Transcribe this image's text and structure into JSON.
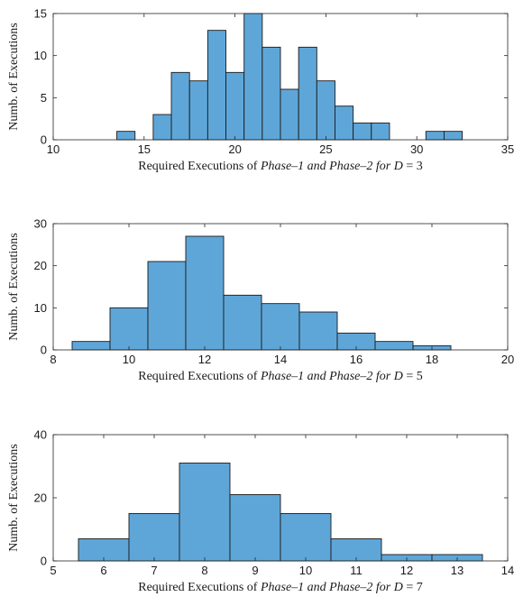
{
  "chart_data": [
    {
      "type": "bar",
      "subtype": "histogram",
      "bin_width": 1,
      "bin_centers": [
        14,
        16,
        17,
        18,
        19,
        20,
        21,
        22,
        23,
        24,
        25,
        26,
        27,
        28,
        31,
        32
      ],
      "values": [
        1,
        3,
        8,
        7,
        13,
        8,
        15,
        11,
        6,
        11,
        7,
        4,
        2,
        2,
        1,
        1
      ],
      "xlabel_prefix": "Required Executions of ",
      "xlabel_italic": "Phase–1 and Phase–2 for D",
      "xlabel_suffix": " = 3",
      "ylabel": "Numb. of Executions",
      "xlim": [
        10,
        35
      ],
      "ylim": [
        0,
        15
      ],
      "xticks": [
        "10",
        "15",
        "20",
        "25",
        "30",
        "35"
      ],
      "yticks": [
        "0",
        "5",
        "10",
        "15"
      ],
      "bar_color": "#5fa6d8",
      "grid": false
    },
    {
      "type": "bar",
      "subtype": "histogram",
      "bin_width": 1,
      "bin_centers": [
        9,
        10,
        11,
        12,
        13,
        14,
        15,
        16,
        17,
        18
      ],
      "values": [
        2,
        10,
        21,
        27,
        13,
        11,
        9,
        4,
        2,
        1
      ],
      "xlabel_prefix": "Required Executions of ",
      "xlabel_italic": "Phase–1 and Phase–2 for D",
      "xlabel_suffix": " = 5",
      "ylabel": "Numb. of Executions",
      "xlim": [
        8,
        20
      ],
      "ylim": [
        0,
        30
      ],
      "xticks": [
        "8",
        "10",
        "12",
        "14",
        "16",
        "18",
        "20"
      ],
      "yticks": [
        "0",
        "10",
        "20",
        "30"
      ],
      "bar_color": "#5fa6d8",
      "grid": false
    },
    {
      "type": "bar",
      "subtype": "histogram",
      "bin_width": 1,
      "bin_centers": [
        6,
        7,
        8,
        9,
        10,
        11,
        12,
        13
      ],
      "values": [
        7,
        15,
        31,
        21,
        15,
        7,
        2,
        2
      ],
      "xlabel_prefix": "Required Executions of ",
      "xlabel_italic": "Phase–1 and Phase–2 for D",
      "xlabel_suffix": " = 7",
      "ylabel": "Numb. of Executions",
      "xlim": [
        5,
        14
      ],
      "ylim": [
        0,
        40
      ],
      "xticks": [
        "5",
        "6",
        "7",
        "8",
        "9",
        "10",
        "11",
        "12",
        "13",
        "14"
      ],
      "yticks": [
        "0",
        "20",
        "40"
      ],
      "bar_color": "#5fa6d8",
      "grid": false
    }
  ]
}
